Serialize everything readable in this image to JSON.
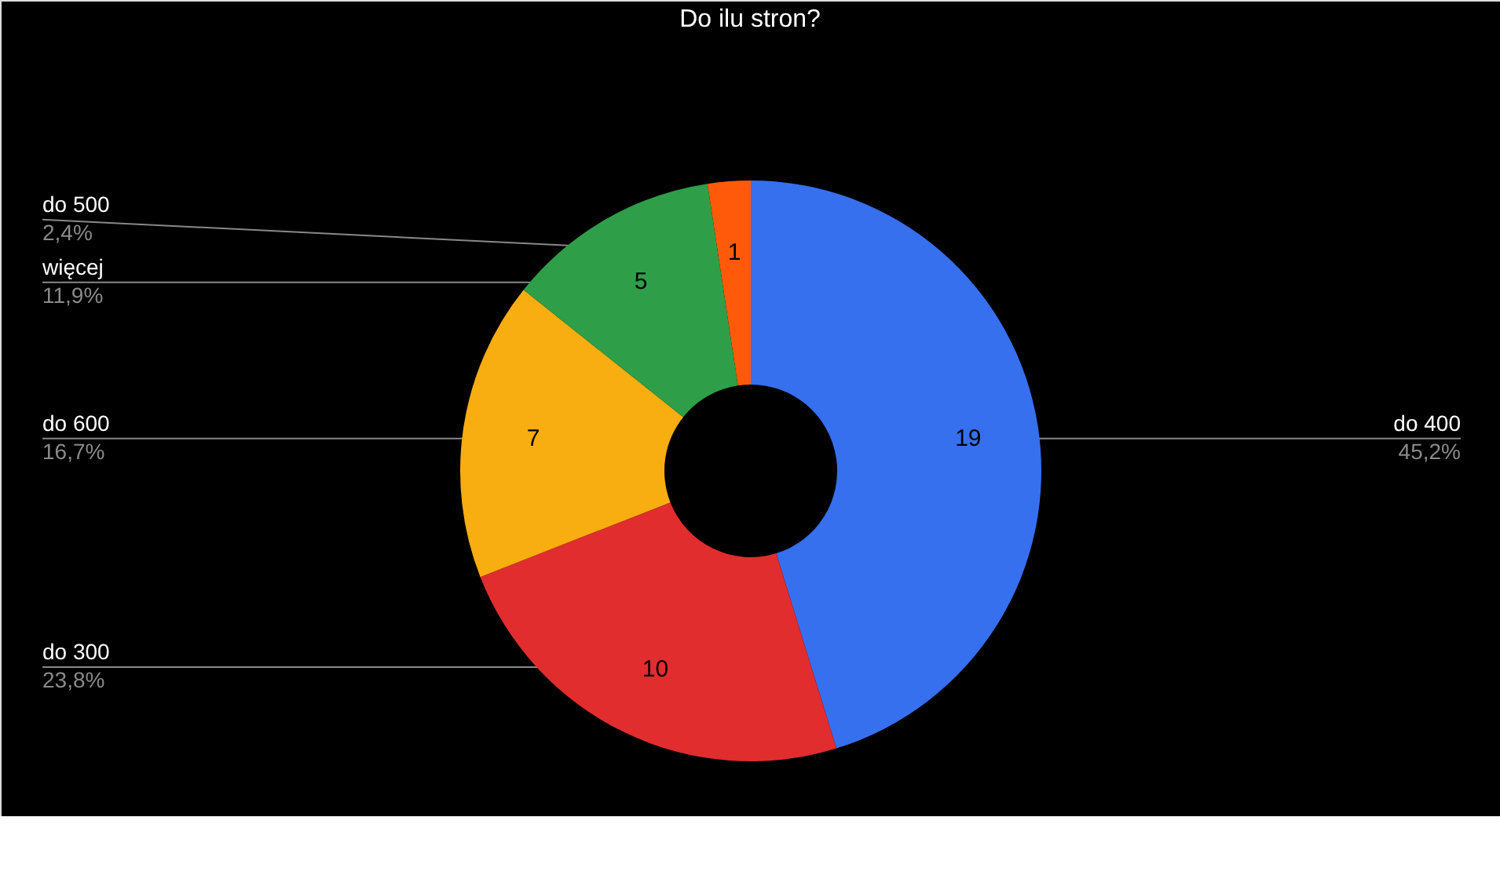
{
  "chart_data": {
    "type": "donut",
    "title": "Do ilu stron?",
    "categories": [
      "do 400",
      "do 300",
      "do 600",
      "więcej",
      "do 500"
    ],
    "values": [
      19,
      10,
      7,
      5,
      1
    ],
    "colors": [
      "#3670ef",
      "#e12d2d",
      "#f8ad10",
      "#2f9e48",
      "#ff5a0a"
    ],
    "data_labels": true,
    "annotations": [
      "45,2%",
      "23,8%",
      "16,7%",
      "11,9%",
      "2,4%"
    ]
  }
}
